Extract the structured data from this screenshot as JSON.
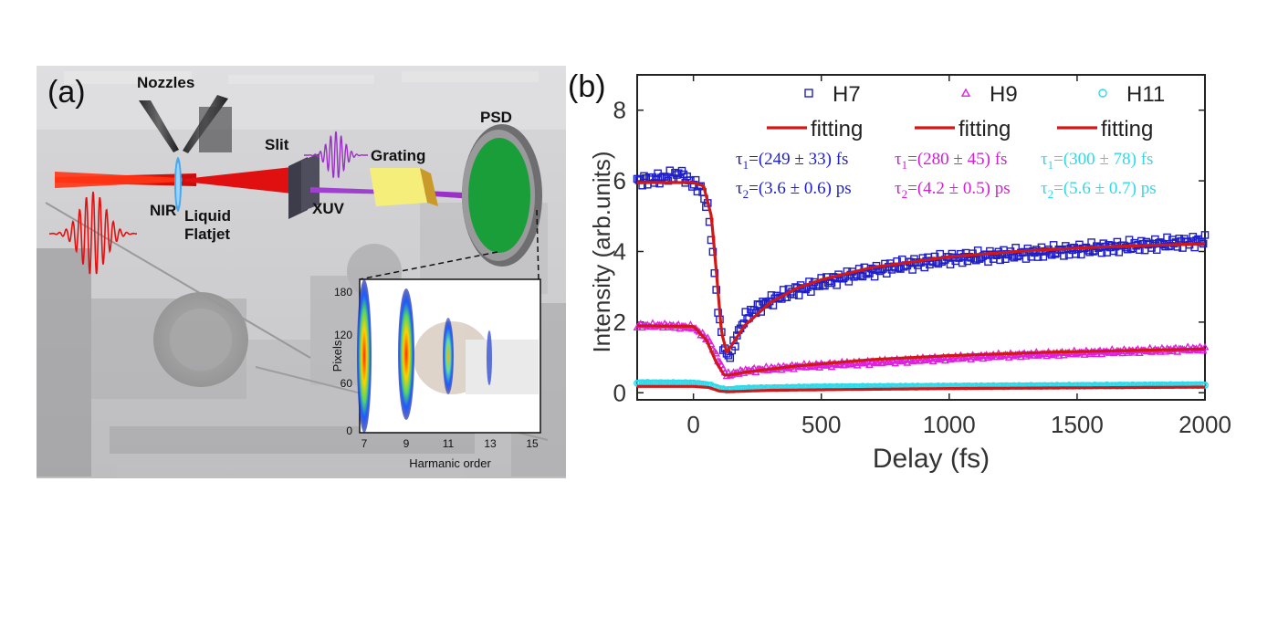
{
  "panel_a": {
    "label": "(a)",
    "labels": {
      "nozzles": "Nozzles",
      "slit": "Slit",
      "grating": "Grating",
      "psd": "PSD",
      "nir": "NIR",
      "liquid": "Liquid",
      "flatjet": "Flatjet",
      "xuv": "XUV"
    },
    "inset": {
      "ylabel": "Pixels",
      "xlabel": "Harmanic order",
      "yticks": [
        "180",
        "120",
        "60",
        "0"
      ],
      "xticks": [
        "7",
        "9",
        "11",
        "13",
        "15"
      ]
    },
    "colors": {
      "nir_beam": "#e01010",
      "xuv_beam": "#9b30c8",
      "detector": "#1a9e3a",
      "grating": "#f5ee7a"
    }
  },
  "chart_data": {
    "type": "line",
    "panel_label": "(b)",
    "xlabel": "Delay (fs)",
    "ylabel": "Intensity (arb.units)",
    "xlim": [
      -220,
      2000
    ],
    "ylim": [
      -0.2,
      9.0
    ],
    "xticks": [
      0,
      500,
      1000,
      1500,
      2000
    ],
    "yticks": [
      0,
      2,
      4,
      6,
      8
    ],
    "grid": false,
    "legend_position": "top-right",
    "series": [
      {
        "name": "H7",
        "marker": "square",
        "color": "#1f1fc8",
        "x": [
          -220,
          -150,
          -100,
          -50,
          0,
          30,
          60,
          80,
          100,
          120,
          140,
          170,
          200,
          250,
          300,
          400,
          500,
          600,
          800,
          1000,
          1200,
          1400,
          1600,
          1800,
          2000
        ],
        "y": [
          6.0,
          6.05,
          6.1,
          6.2,
          5.9,
          5.8,
          5.1,
          3.6,
          2.1,
          1.2,
          1.0,
          1.6,
          2.1,
          2.4,
          2.6,
          2.9,
          3.1,
          3.3,
          3.6,
          3.8,
          3.9,
          4.0,
          4.1,
          4.2,
          4.3
        ]
      },
      {
        "name": "H9",
        "marker": "triangle",
        "color": "#e020e0",
        "x": [
          -220,
          -100,
          0,
          60,
          100,
          130,
          160,
          200,
          300,
          400,
          500,
          600,
          800,
          1000,
          1200,
          1400,
          1600,
          1800,
          2000
        ],
        "y": [
          1.9,
          1.9,
          1.85,
          1.5,
          0.9,
          0.5,
          0.55,
          0.62,
          0.68,
          0.74,
          0.78,
          0.82,
          0.9,
          0.98,
          1.05,
          1.1,
          1.15,
          1.2,
          1.25
        ]
      },
      {
        "name": "H11",
        "marker": "circle",
        "color": "#30d8e8",
        "x": [
          -220,
          0,
          60,
          100,
          130,
          200,
          500,
          1000,
          1500,
          2000
        ],
        "y": [
          0.28,
          0.27,
          0.22,
          0.12,
          0.08,
          0.12,
          0.16,
          0.18,
          0.2,
          0.22
        ]
      }
    ],
    "fits": [
      {
        "name": "fitting",
        "color": "#d01818",
        "x": [
          -220,
          0,
          40,
          70,
          90,
          110,
          130,
          150,
          200,
          300,
          400,
          500,
          700,
          1000,
          1300,
          1600,
          2000
        ],
        "y": [
          5.95,
          5.95,
          5.85,
          5.0,
          3.4,
          1.7,
          1.15,
          1.35,
          1.9,
          2.55,
          2.95,
          3.2,
          3.55,
          3.85,
          4.02,
          4.13,
          4.22
        ]
      },
      {
        "name": "fitting",
        "color": "#d01818",
        "x": [
          -220,
          0,
          50,
          90,
          120,
          140,
          200,
          400,
          700,
          1000,
          1400,
          2000
        ],
        "y": [
          1.9,
          1.88,
          1.5,
          0.85,
          0.5,
          0.5,
          0.58,
          0.76,
          0.94,
          1.05,
          1.15,
          1.24
        ]
      },
      {
        "name": "fitting",
        "color": "#d01818",
        "x": [
          -220,
          0,
          60,
          100,
          140,
          300,
          1000,
          2000
        ],
        "y": [
          0.18,
          0.18,
          0.15,
          0.05,
          0.03,
          0.07,
          0.12,
          0.16
        ]
      }
    ],
    "annotations": [
      {
        "t1": "(249 ± 33) fs",
        "t2": "(3.6 ± 0.6) ps",
        "color": "#1f1fc8"
      },
      {
        "t1": "(280 ± 45) fs",
        "t2": "(4.2 ± 0.5) ps",
        "color": "#d020d0"
      },
      {
        "t1": "(300 ± 78) fs",
        "t2": "(5.6 ± 0.7) ps",
        "color": "#30d8e8"
      }
    ]
  }
}
